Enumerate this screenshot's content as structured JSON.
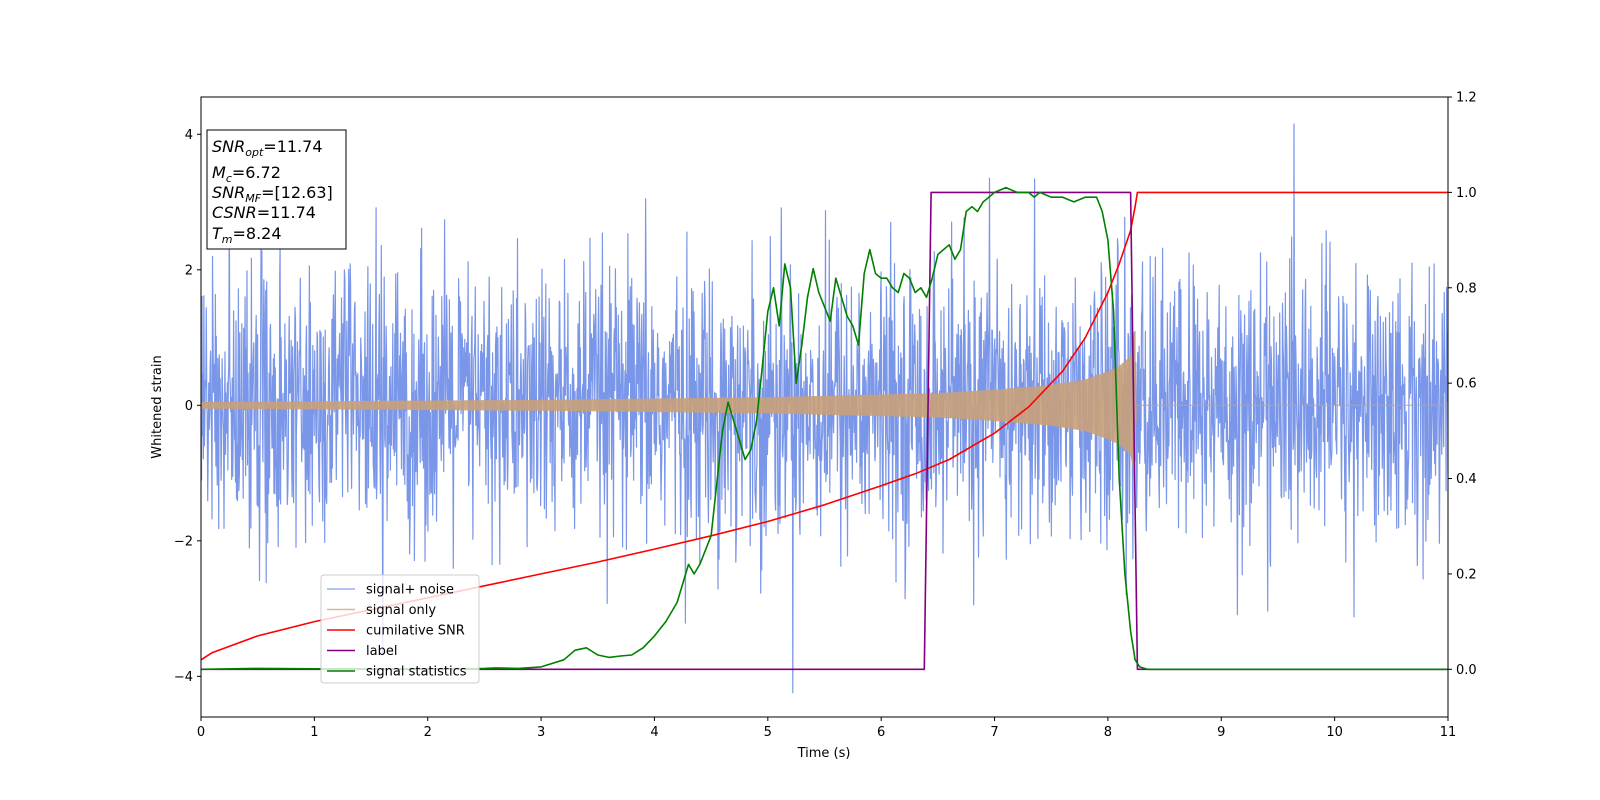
{
  "chart_data": {
    "type": "line",
    "title": "",
    "xlabel": "Time (s)",
    "ylabel_left": "Whitened strain",
    "ylabel_right": "",
    "xlim": [
      0,
      11
    ],
    "ylim_left": [
      -4.6,
      4.55
    ],
    "ylim_right": [
      -0.1,
      1.2
    ],
    "x_ticks": [
      0,
      1,
      2,
      3,
      4,
      5,
      6,
      7,
      8,
      9,
      10,
      11
    ],
    "x_tick_labels": [
      "0",
      "1",
      "2",
      "3",
      "4",
      "5",
      "6",
      "7",
      "8",
      "9",
      "10",
      "11"
    ],
    "y_left_ticks": [
      4,
      2,
      0,
      -2,
      -4
    ],
    "y_left_tick_labels": [
      "4",
      "2",
      "0",
      "−2",
      "−4"
    ],
    "y_right_ticks": [
      1.2,
      1.0,
      0.8,
      0.6,
      0.4,
      0.2,
      0.0
    ],
    "y_right_tick_labels": [
      "1.2",
      "1.0",
      "0.8",
      "0.6",
      "0.4",
      "0.2",
      "0.0"
    ],
    "grid": false,
    "legend_position": "lower-left",
    "info_box": {
      "position": "top-left",
      "snr_opt": {
        "main": "SNR",
        "sub": "opt",
        "value": "=11.74"
      },
      "mc": {
        "main": "M",
        "sub": "c",
        "value": "=6.72"
      },
      "snr_mf": {
        "main": "SNR",
        "sub": "MF",
        "value": "=[12.63]"
      },
      "csnr": {
        "main": "CSNR",
        "value": "=11.74"
      },
      "tm": {
        "main": "T",
        "sub": "m",
        "value": "=8.24"
      }
    },
    "series": [
      {
        "name": "signal+ noise",
        "axis": "left",
        "color": "#7a96e8",
        "description_values": {
          "noise_std": 1.0,
          "typical_peak": 3.0,
          "max_peak": 4.15,
          "min_trough": -4.15
        }
      },
      {
        "name": "signal only",
        "axis": "left",
        "color": "#c8a07a",
        "envelope": {
          "x": [
            0,
            1,
            2,
            3,
            4,
            5,
            6,
            6.5,
            7,
            7.5,
            7.8,
            8.0,
            8.1,
            8.2,
            8.24,
            8.25,
            11
          ],
          "amplitude": [
            0.05,
            0.06,
            0.07,
            0.08,
            0.1,
            0.12,
            0.16,
            0.18,
            0.23,
            0.3,
            0.38,
            0.5,
            0.58,
            0.72,
            1.1,
            0.0,
            0.0
          ]
        }
      },
      {
        "name": "cumilative SNR",
        "axis": "right",
        "color": "#ff0000",
        "x": [
          0,
          0.1,
          0.5,
          1,
          1.5,
          2,
          2.5,
          3,
          3.5,
          4,
          4.5,
          5,
          5.5,
          6,
          6.3,
          6.6,
          7,
          7.3,
          7.6,
          7.8,
          8.0,
          8.1,
          8.2,
          8.24,
          8.26,
          11
        ],
        "y": [
          0.02,
          0.035,
          0.07,
          0.1,
          0.125,
          0.15,
          0.175,
          0.2,
          0.225,
          0.252,
          0.28,
          0.31,
          0.345,
          0.385,
          0.41,
          0.44,
          0.495,
          0.55,
          0.625,
          0.695,
          0.79,
          0.85,
          0.92,
          0.97,
          1.0,
          1.0
        ]
      },
      {
        "name": "label",
        "axis": "right",
        "color": "#800080",
        "x": [
          0,
          6.38,
          6.44,
          8.2,
          8.26,
          11
        ],
        "y": [
          0,
          0,
          1.0,
          1.0,
          0,
          0
        ]
      },
      {
        "name": "signal statistics",
        "axis": "right",
        "color": "#008000",
        "x": [
          0,
          0.5,
          1,
          1.5,
          2,
          2.5,
          2.6,
          2.8,
          3,
          3.2,
          3.3,
          3.4,
          3.5,
          3.6,
          3.7,
          3.8,
          3.9,
          4.0,
          4.1,
          4.2,
          4.25,
          4.3,
          4.35,
          4.4,
          4.5,
          4.55,
          4.6,
          4.65,
          4.7,
          4.75,
          4.8,
          4.85,
          4.9,
          4.95,
          5.0,
          5.05,
          5.1,
          5.15,
          5.2,
          5.25,
          5.3,
          5.35,
          5.4,
          5.45,
          5.5,
          5.55,
          5.6,
          5.65,
          5.7,
          5.75,
          5.8,
          5.85,
          5.9,
          5.95,
          6.0,
          6.05,
          6.1,
          6.15,
          6.2,
          6.25,
          6.3,
          6.35,
          6.4,
          6.45,
          6.5,
          6.55,
          6.6,
          6.65,
          6.7,
          6.75,
          6.8,
          6.85,
          6.9,
          6.95,
          7.0,
          7.1,
          7.2,
          7.3,
          7.35,
          7.4,
          7.5,
          7.6,
          7.7,
          7.8,
          7.9,
          7.95,
          8.0,
          8.05,
          8.1,
          8.15,
          8.2,
          8.24,
          8.28,
          8.35,
          11
        ],
        "y": [
          0.0,
          0.002,
          0.001,
          0.001,
          0.001,
          0.002,
          0.003,
          0.002,
          0.005,
          0.02,
          0.04,
          0.045,
          0.03,
          0.025,
          0.028,
          0.03,
          0.045,
          0.07,
          0.1,
          0.14,
          0.18,
          0.22,
          0.2,
          0.22,
          0.28,
          0.39,
          0.5,
          0.56,
          0.52,
          0.48,
          0.44,
          0.46,
          0.52,
          0.63,
          0.75,
          0.8,
          0.72,
          0.85,
          0.8,
          0.6,
          0.68,
          0.78,
          0.84,
          0.79,
          0.76,
          0.73,
          0.82,
          0.78,
          0.74,
          0.72,
          0.68,
          0.83,
          0.88,
          0.83,
          0.82,
          0.82,
          0.8,
          0.79,
          0.83,
          0.82,
          0.79,
          0.8,
          0.78,
          0.82,
          0.87,
          0.88,
          0.89,
          0.86,
          0.88,
          0.96,
          0.97,
          0.96,
          0.98,
          0.99,
          1.0,
          1.01,
          1.0,
          1.0,
          0.99,
          1.0,
          0.99,
          0.99,
          0.98,
          0.99,
          0.99,
          0.96,
          0.9,
          0.75,
          0.4,
          0.2,
          0.08,
          0.02,
          0.005,
          0.0,
          0.0
        ]
      }
    ]
  }
}
